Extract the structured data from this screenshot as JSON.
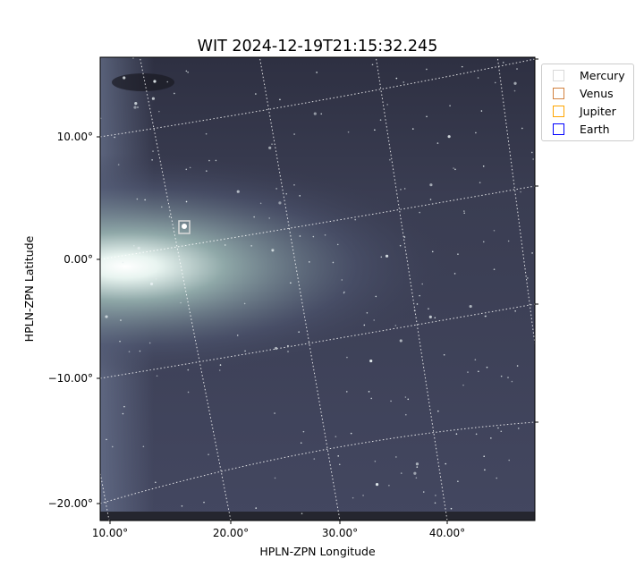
{
  "chart_data": {
    "type": "image",
    "title": "WIT 2024-12-19T21:15:32.245",
    "xlabel": "HPLN-ZPN Longitude",
    "ylabel": "HPLN-ZPN Latitude",
    "xticks": [
      "10.00°",
      "20.00°",
      "30.00°",
      "40.00°"
    ],
    "yticks": [
      "10.00°",
      "0.00°",
      "−10.00°",
      "−20.00°"
    ],
    "colormap": "bone",
    "grid": true,
    "legend_placement": "outside-top-right",
    "legend": [
      {
        "name": "Mercury",
        "color": "#d9d9d9"
      },
      {
        "name": "Venus",
        "color": "#d2813e"
      },
      {
        "name": "Jupiter",
        "color": "#ffa500"
      },
      {
        "name": "Earth",
        "color": "#0000ff"
      }
    ],
    "marked_body": "Mercury"
  }
}
